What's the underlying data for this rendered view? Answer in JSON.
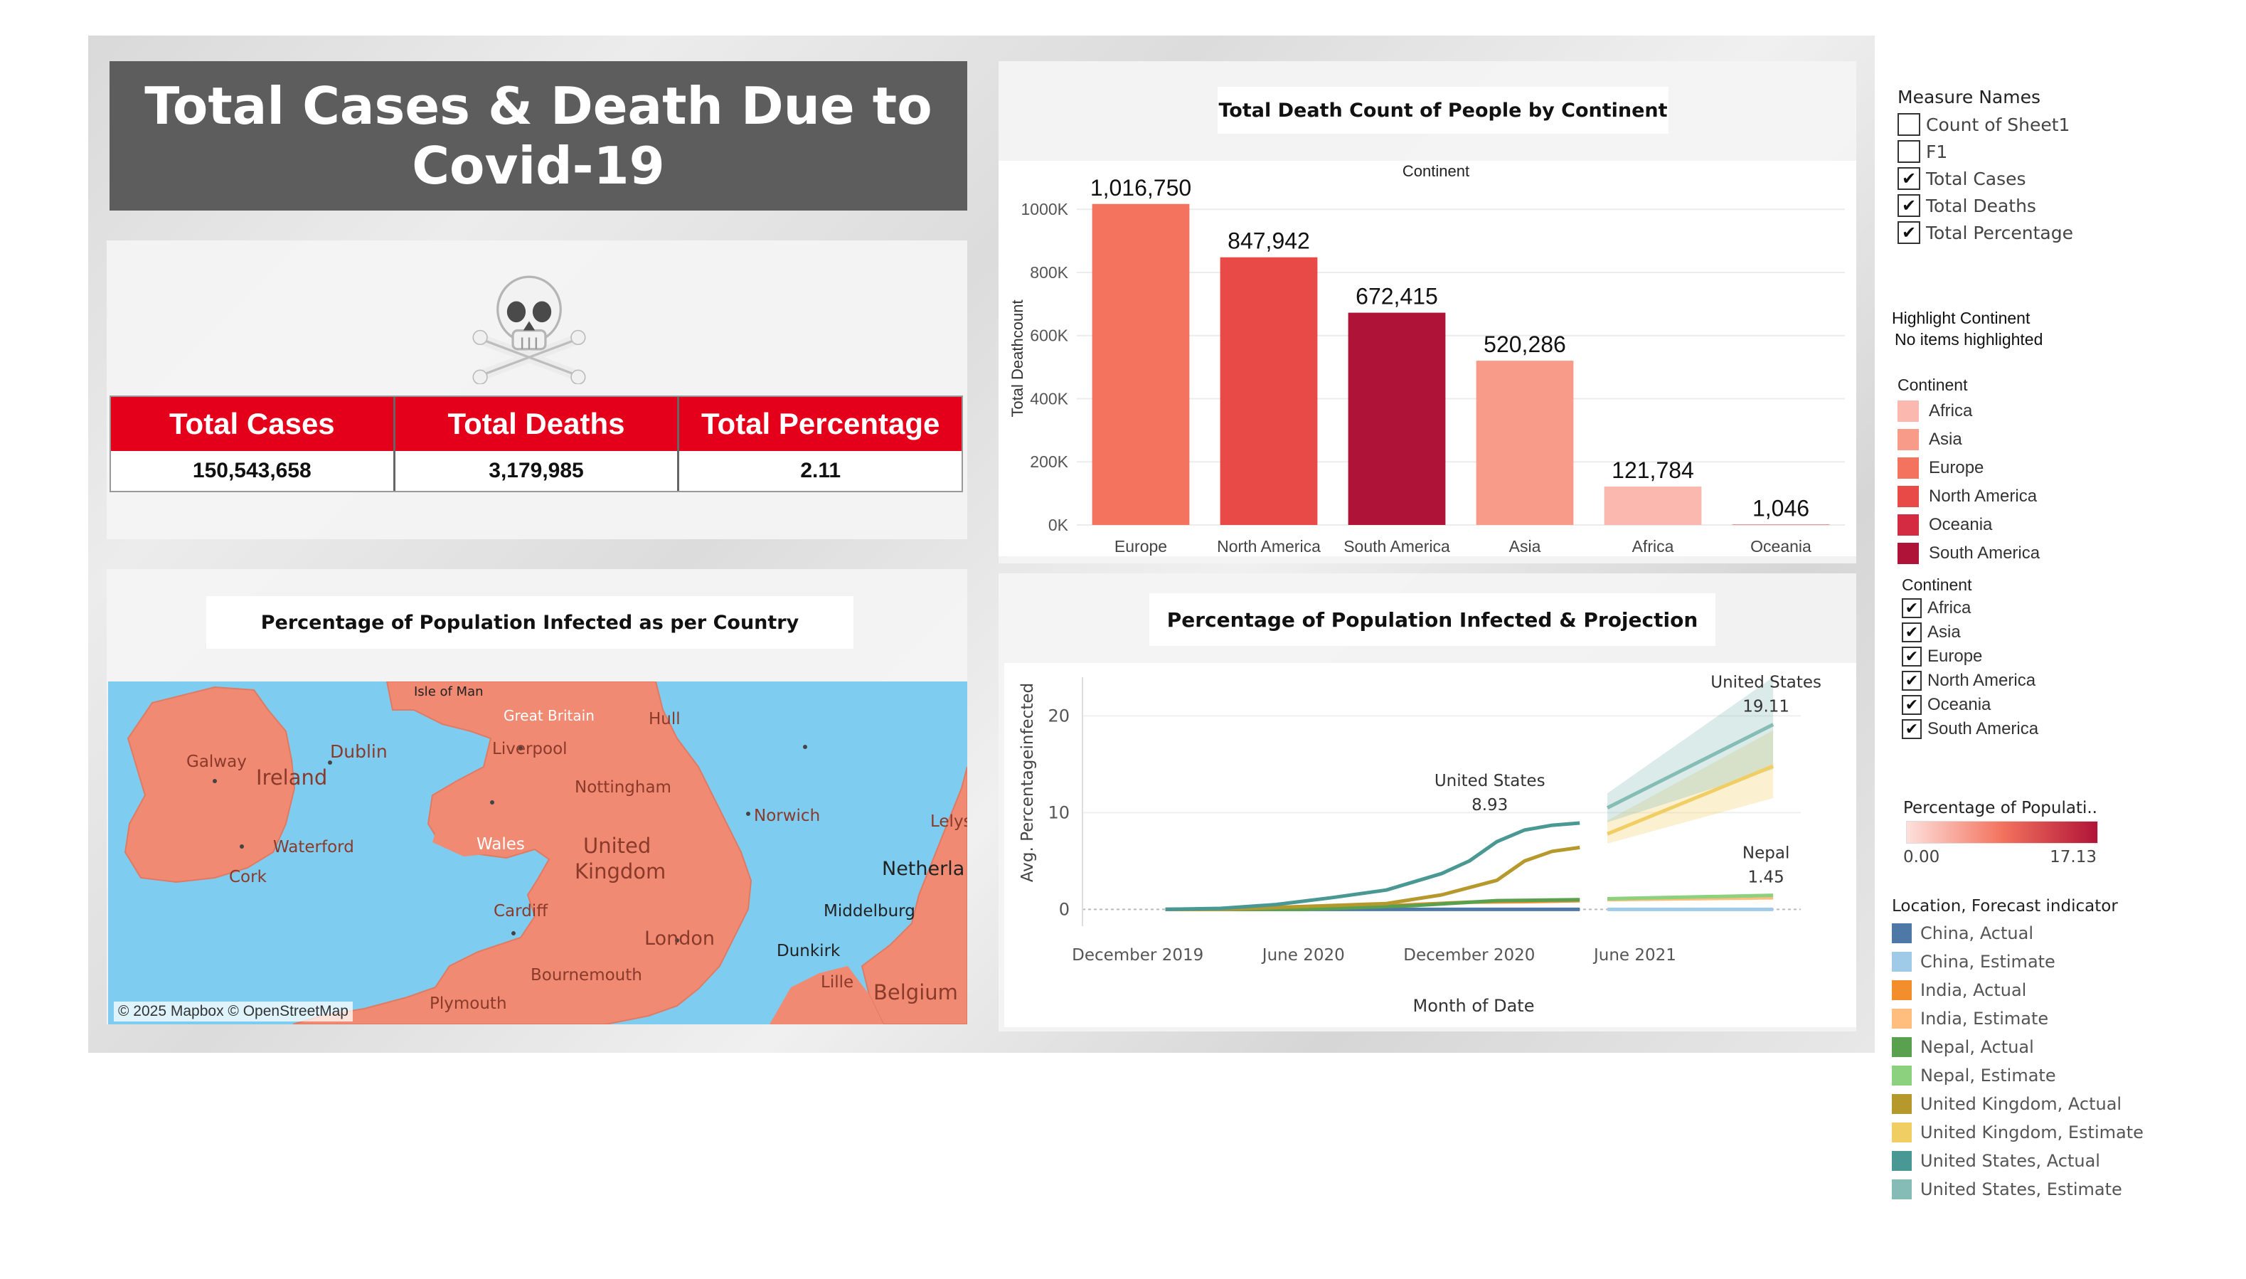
{
  "dashboard": {
    "title": "Total Cases & Death Due to Covid-19"
  },
  "kpis": [
    {
      "label": "Total Cases",
      "value": "150,543,658"
    },
    {
      "label": "Total Deaths",
      "value": "3,179,985"
    },
    {
      "label": "Total Percentage",
      "value": "2.11"
    }
  ],
  "map": {
    "title": "Percentage of Population Infected as per Country",
    "attribution": "© 2025 Mapbox © OpenStreetMap",
    "labels": [
      "Isle of Man",
      "Great Britain",
      "Hull",
      "Galway",
      "Dublin",
      "Ireland",
      "Liverpool",
      "Nottingham",
      "Norwich",
      "Waterford",
      "Wales",
      "United",
      "Kingdom",
      "Cork",
      "Cardiff",
      "London",
      "Middelburg",
      "Netherla",
      "Dunkirk",
      "Bournemouth",
      "Lille",
      "Belgium",
      "Plymouth",
      "Lelys"
    ],
    "colors": {
      "land": "#f08a72",
      "water": "#7ecdf0",
      "label": "#8a3a2a"
    }
  },
  "legend": {
    "measure_names": {
      "title": "Measure Names",
      "items": [
        {
          "label": "Count of Sheet1",
          "checked": false
        },
        {
          "label": "F1",
          "checked": false
        },
        {
          "label": "Total Cases",
          "checked": true
        },
        {
          "label": "Total Deaths",
          "checked": true
        },
        {
          "label": "Total Percentage",
          "checked": true
        }
      ]
    },
    "highlight": {
      "title": "Highlight Continent",
      "value": "No items highlighted"
    },
    "continent_colors": {
      "title": "Continent",
      "items": [
        {
          "label": "Africa",
          "color": "#fbb8ae"
        },
        {
          "label": "Asia",
          "color": "#f99b89"
        },
        {
          "label": "Europe",
          "color": "#f3735e"
        },
        {
          "label": "North America",
          "color": "#e84a48"
        },
        {
          "label": "Oceania",
          "color": "#d42a42"
        },
        {
          "label": "South America",
          "color": "#b01338"
        }
      ]
    },
    "continent_filter": {
      "title": "Continent",
      "items": [
        {
          "label": "Africa",
          "checked": true
        },
        {
          "label": "Asia",
          "checked": true
        },
        {
          "label": "Europe",
          "checked": true
        },
        {
          "label": "North America",
          "checked": true
        },
        {
          "label": "Oceania",
          "checked": true
        },
        {
          "label": "South America",
          "checked": true
        }
      ]
    },
    "gradient": {
      "title": "Percentage of Populati..",
      "min": "0.00",
      "max": "17.13",
      "from": "#fde0dc",
      "to": "#b01338"
    },
    "location_forecast": {
      "title": "Location, Forecast indicator",
      "items": [
        {
          "label": "China, Actual",
          "color": "#4e79a7"
        },
        {
          "label": "China, Estimate",
          "color": "#a0cbe8"
        },
        {
          "label": "India, Actual",
          "color": "#f28e2b"
        },
        {
          "label": "India, Estimate",
          "color": "#ffbe7d"
        },
        {
          "label": "Nepal, Actual",
          "color": "#59a14f"
        },
        {
          "label": "Nepal, Estimate",
          "color": "#8cd17d"
        },
        {
          "label": "United Kingdom, Actual",
          "color": "#b6992d"
        },
        {
          "label": "United Kingdom, Estimate",
          "color": "#f1ce63"
        },
        {
          "label": "United States, Actual",
          "color": "#499894"
        },
        {
          "label": "United States, Estimate",
          "color": "#86bcb6"
        }
      ]
    }
  },
  "chart_data": [
    {
      "type": "bar",
      "title": "Total Death Count of People by Continent",
      "header": "Continent",
      "ylabel": "Total Deathcount",
      "categories": [
        "Europe",
        "North America",
        "South America",
        "Asia",
        "Africa",
        "Oceania"
      ],
      "values": [
        1016750,
        847942,
        672415,
        520286,
        121784,
        1046
      ],
      "data_labels": [
        "1,016,750",
        "847,942",
        "672,415",
        "520,286",
        "121,784",
        "1,046"
      ],
      "colors": [
        "#f3735e",
        "#e84a48",
        "#b01338",
        "#f99b89",
        "#fbb8ae",
        "#d42a42"
      ],
      "ylim": [
        0,
        1050000
      ],
      "yticks": [
        0,
        200000,
        400000,
        600000,
        800000,
        1000000
      ],
      "ytick_labels": [
        "0K",
        "200K",
        "400K",
        "600K",
        "800K",
        "1000K"
      ],
      "grid": true
    },
    {
      "type": "line",
      "title": "Percentage of Population Infected & Projection",
      "xlabel": "Month of Date",
      "ylabel": "Avg. Percentageinfected",
      "x_ticks": [
        "December 2019",
        "June 2020",
        "December 2020",
        "June 2021"
      ],
      "x_tick_dates": [
        "2019-12",
        "2020-06",
        "2020-12",
        "2021-06"
      ],
      "xlim": [
        "2019-10",
        "2021-12"
      ],
      "ylim": [
        -1,
        24
      ],
      "yticks": [
        0,
        10,
        20
      ],
      "series": [
        {
          "name": "China, Actual",
          "color": "#4e79a7",
          "x": [
            "2020-01",
            "2020-04",
            "2020-07",
            "2020-10",
            "2021-01",
            "2021-04"
          ],
          "y": [
            0,
            0,
            0,
            0,
            0,
            0
          ]
        },
        {
          "name": "China, Estimate",
          "color": "#a0cbe8",
          "x": [
            "2021-05",
            "2021-11"
          ],
          "y": [
            0,
            0
          ]
        },
        {
          "name": "India, Actual",
          "color": "#f28e2b",
          "x": [
            "2020-01",
            "2020-04",
            "2020-07",
            "2020-10",
            "2020-12",
            "2021-02",
            "2021-04"
          ],
          "y": [
            0,
            0,
            0.1,
            0.5,
            0.75,
            0.8,
            0.9
          ]
        },
        {
          "name": "India, Estimate",
          "color": "#ffbe7d",
          "x": [
            "2021-05",
            "2021-11"
          ],
          "y": [
            1.0,
            1.2
          ]
        },
        {
          "name": "Nepal, Actual",
          "color": "#59a14f",
          "x": [
            "2020-01",
            "2020-06",
            "2020-10",
            "2021-01",
            "2021-04"
          ],
          "y": [
            0,
            0,
            0.4,
            0.9,
            1.0
          ]
        },
        {
          "name": "Nepal, Estimate",
          "color": "#8cd17d",
          "x": [
            "2021-05",
            "2021-11"
          ],
          "y": [
            1.1,
            1.45
          ]
        },
        {
          "name": "United Kingdom, Actual",
          "color": "#b6992d",
          "x": [
            "2020-01",
            "2020-03",
            "2020-05",
            "2020-07",
            "2020-09",
            "2020-11",
            "2021-01",
            "2021-02",
            "2021-03",
            "2021-04"
          ],
          "y": [
            0,
            0,
            0.2,
            0.4,
            0.6,
            1.5,
            3.0,
            5.0,
            6.0,
            6.4
          ]
        },
        {
          "name": "United Kingdom, Estimate",
          "color": "#f1ce63",
          "x": [
            "2021-05",
            "2021-11"
          ],
          "y": [
            7.8,
            14.8
          ],
          "band": {
            "lo": [
              6.8,
              11.5
            ],
            "hi": [
              9.2,
              18.5
            ]
          }
        },
        {
          "name": "United States, Actual",
          "color": "#499894",
          "x": [
            "2020-01",
            "2020-03",
            "2020-05",
            "2020-07",
            "2020-09",
            "2020-11",
            "2020-12",
            "2021-01",
            "2021-02",
            "2021-03",
            "2021-04"
          ],
          "y": [
            0,
            0.1,
            0.5,
            1.2,
            2.0,
            3.7,
            5.0,
            7.0,
            8.2,
            8.7,
            8.93
          ]
        },
        {
          "name": "United States, Estimate",
          "color": "#86bcb6",
          "x": [
            "2021-05",
            "2021-11"
          ],
          "y": [
            10.5,
            19.11
          ],
          "band": {
            "lo": [
              9.0,
              14.5
            ],
            "hi": [
              12.0,
              24.0
            ]
          }
        }
      ],
      "annotations": [
        {
          "text": "United States",
          "value": "8.93",
          "x": "2021-01",
          "y": 8.93
        },
        {
          "text": "United States",
          "value": "19.11",
          "x": "2021-11",
          "y": 19.11
        },
        {
          "text": "Nepal",
          "value": "1.45",
          "x": "2021-11",
          "y": 1.45
        }
      ]
    }
  ]
}
